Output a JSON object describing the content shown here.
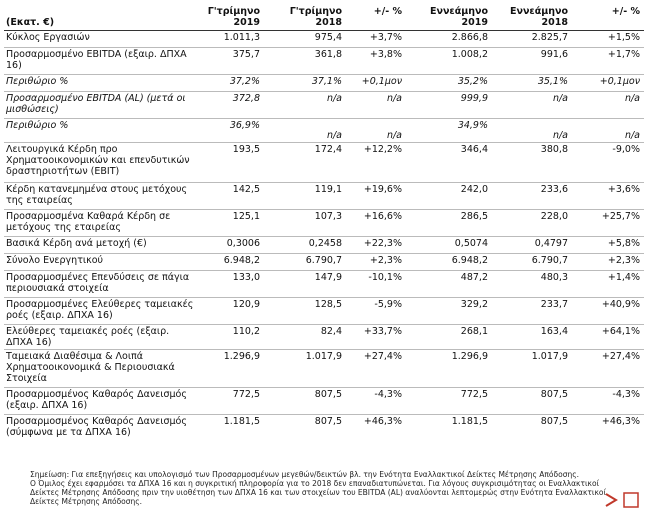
{
  "header": {
    "unit": "(Εκατ. €)",
    "columns": [
      [
        "Γ'τρίμηνο",
        "2019"
      ],
      [
        "Γ'τρίμηνο",
        "2018"
      ],
      [
        "+/- %"
      ],
      [
        "Εννεάμηνο",
        "2019"
      ],
      [
        "Εννεάμηνο",
        "2018"
      ],
      [
        "+/- %"
      ]
    ]
  },
  "table": {
    "rows": [
      [
        "Κύκλος Εργασιών",
        "1.011,3",
        "975,4",
        "+3,7%",
        "2.866,8",
        "2.825,7",
        "+1,5%"
      ],
      [
        "Προσαρμοσμένο EBITDA (εξαιρ. ΔΠΧΑ 16)",
        "375,7",
        "361,8",
        "+3,8%",
        "1.008,2",
        "991,6",
        "+1,7%"
      ],
      [
        "Περιθώριο %",
        "37,2%",
        "37,1%",
        "+0,1μον",
        "35,2%",
        "35,1%",
        "+0,1μον"
      ],
      [
        "Προσαρμοσμένο EBITDA (AL) (μετά οι μισθώσεις)",
        "372,8",
        "n/a",
        "n/a",
        "999,9",
        "n/a",
        "n/a"
      ],
      [
        "Περιθώριο %",
        "36,9%",
        "n/a",
        "n/a",
        "34,9%",
        "n/a",
        "n/a"
      ],
      [
        "Λειτουργικά Κέρδη προ Χρηματοοικονομικών και επενδυτικών δραστηριοτήτων (EBIT)",
        "193,5",
        "172,4",
        "+12,2%",
        "346,4",
        "380,8",
        "-9,0%"
      ],
      [
        "Κέρδη κατανεμημένα στους μετόχους της εταιρείας",
        "142,5",
        "119,1",
        "+19,6%",
        "242,0",
        "233,6",
        "+3,6%"
      ],
      [
        "Προσαρμοσμένα Καθαρά Κέρδη σε μετόχους της εταιρείας",
        "125,1",
        "107,3",
        "+16,6%",
        "286,5",
        "228,0",
        "+25,7%"
      ],
      [
        "Βασικά Κέρδη ανά μετοχή (€)",
        "0,3006",
        "0,2458",
        "+22,3%",
        "0,5074",
        "0,4797",
        "+5,8%"
      ],
      [
        "Σύνολο Ενεργητικού",
        "6.948,2",
        "6.790,7",
        "+2,3%",
        "6.948,2",
        "6.790,7",
        "+2,3%"
      ],
      [
        "Προσαρμοσμένες Επενδύσεις σε πάγια περιουσιακά στοιχεία",
        "133,0",
        "147,9",
        "-10,1%",
        "487,2",
        "480,3",
        "+1,4%"
      ],
      [
        "Προσαρμοσμένες Ελεύθερες ταμειακές ροές (εξαιρ. ΔΠΧΑ 16)",
        "120,9",
        "128,5",
        "-5,9%",
        "329,2",
        "233,7",
        "+40,9%"
      ],
      [
        "Ελεύθερες ταμειακές ροές (εξαιρ. ΔΠΧΑ 16)",
        "110,2",
        "82,4",
        "+33,7%",
        "268,1",
        "163,4",
        "+64,1%"
      ],
      [
        "Ταμειακά Διαθέσιμα & Λοιπά Χρηματοοικονομικά & Περιουσιακά Στοιχεία",
        "1.296,9",
        "1.017,9",
        "+27,4%",
        "1.296,9",
        "1.017,9",
        "+27,4%"
      ],
      [
        "Προσαρμοσμένος Καθαρός Δανεισμός (εξαιρ. ΔΠΧΑ 16)",
        "772,5",
        "807,5",
        "-4,3%",
        "772,5",
        "807,5",
        "-4,3%"
      ],
      [
        "Προσαρμοσμένος Καθαρός Δανεισμός (σύμφωνα με τα ΔΠΧΑ 16)",
        "1.181,5",
        "807,5",
        "+46,3%",
        "1.181,5",
        "807,5",
        "+46,3%"
      ]
    ]
  },
  "notes": [
    "Σημείωση: Για επεξηγήσεις και υπολογισμό των Προσαρμοσμένων μεγεθών/δεικτών βλ. την Ενότητα Εναλλακτικοί Δείκτες Μέτρησης Απόδοσης.",
    "Ο Όμιλος έχει εφαρμόσει τα ΔΠΧΑ 16 και η συγκριτική πληροφορία για το 2018 δεν επαναδιατυπώνεται. Για λόγους συγκρισιμότητας οι Εναλλακτικοί Δείκτες Μέτρησης Απόδοσης πριν την υιοθέτηση των ΔΠΧΑ 16 και των στοιχείων του EBITDA (AL) αναλύονται λεπτομερώς στην Ενότητα Εναλλακτικοί Δείκτες Μέτρησης Απόδοσης."
  ]
}
